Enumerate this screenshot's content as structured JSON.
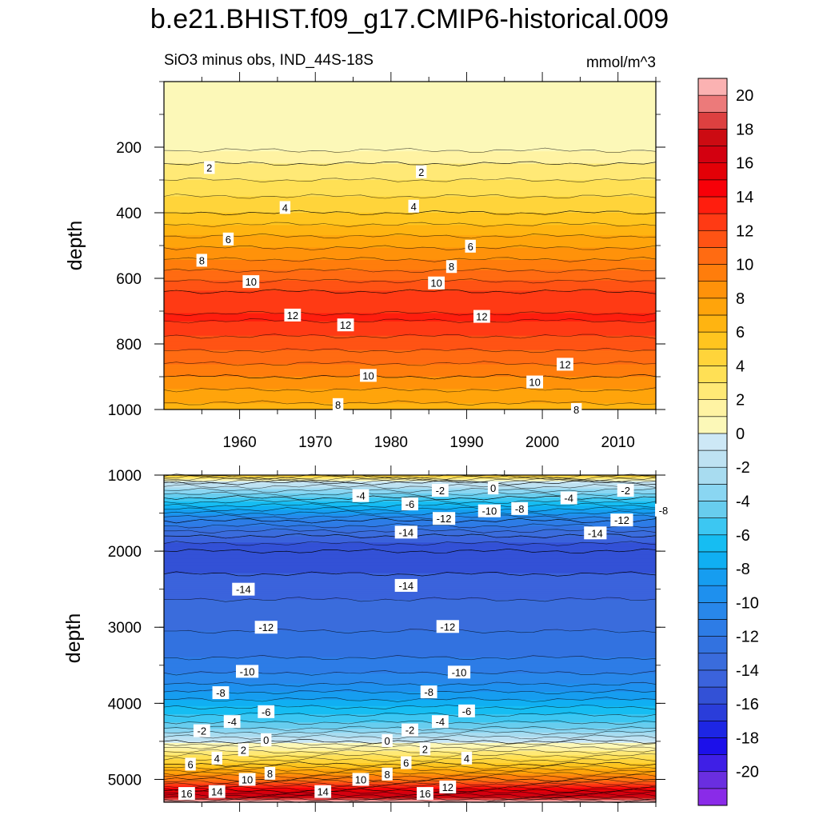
{
  "chart_data": {
    "type": "heatmap",
    "title": "b.e21.BHIST.f09_g17.CMIP6-historical.009",
    "subtitle_left": "SiO3 minus obs, IND_44S-18S",
    "subtitle_right": "mmol/m^3",
    "colorbar": {
      "levels": [
        -22,
        -21,
        -20,
        -19,
        -18,
        -17,
        -16,
        -15,
        -14,
        -13,
        -12,
        -11,
        -10,
        -9,
        -8,
        -7,
        -6,
        -5,
        -4,
        -3,
        -2,
        -1,
        0,
        1,
        2,
        3,
        4,
        5,
        6,
        7,
        8,
        9,
        10,
        11,
        12,
        13,
        14,
        15,
        16,
        17,
        18,
        19,
        20,
        21,
        22
      ],
      "colors": [
        "#8a2be8",
        "#6a2ee0",
        "#3f1fe6",
        "#1c10ea",
        "#1d26e4",
        "#2a3dda",
        "#3351d6",
        "#3b63dc",
        "#3a6cdc",
        "#3272e0",
        "#2d7ce6",
        "#2887ea",
        "#1e90ee",
        "#169df0",
        "#10aff2",
        "#16bdf2",
        "#3cc7f2",
        "#68cdee",
        "#8ad6f2",
        "#a8dcf0",
        "#bee2f2",
        "#cde8f6",
        "#fcf8b8",
        "#fff3a3",
        "#ffe976",
        "#ffe055",
        "#ffd43a",
        "#ffc51f",
        "#ffb411",
        "#ffa40b",
        "#ff920a",
        "#ff7d0c",
        "#ff6b12",
        "#ff5314",
        "#ff3a14",
        "#ff1e0e",
        "#f70008",
        "#e30007",
        "#d30010",
        "#cc0b12",
        "#dd4040",
        "#ec7a7a",
        "#fbb2b2",
        "#ffffff"
      ],
      "ticks": [
        "20",
        "18",
        "16",
        "14",
        "12",
        "10",
        "8",
        "6",
        "4",
        "2",
        "0",
        "-2",
        "-4",
        "-6",
        "-8",
        "-10",
        "-12",
        "-14",
        "-16",
        "-18",
        "-20"
      ]
    },
    "panels": [
      {
        "name": "upper",
        "xlim": [
          1950,
          2015
        ],
        "ylim": [
          0,
          1000
        ],
        "y_reversed": true,
        "ylabel": "depth",
        "xticks": [
          "1960",
          "1970",
          "1980",
          "1990",
          "2000",
          "2010"
        ],
        "yticks": [
          "200",
          "400",
          "600",
          "800",
          "1000"
        ],
        "depth_profile": [
          {
            "depth": 0,
            "value": 0.5
          },
          {
            "depth": 190,
            "value": 0.5
          },
          {
            "depth": 250,
            "value": 2
          },
          {
            "depth": 400,
            "value": 5
          },
          {
            "depth": 560,
            "value": 9.5
          },
          {
            "depth": 640,
            "value": 12
          },
          {
            "depth": 720,
            "value": 13.2
          },
          {
            "depth": 800,
            "value": 11.5
          },
          {
            "depth": 900,
            "value": 9
          },
          {
            "depth": 1000,
            "value": 6.5
          }
        ],
        "contour_labels": [
          {
            "text": "2",
            "year": 1956,
            "depth": 262
          },
          {
            "text": "2",
            "year": 1984,
            "depth": 275
          },
          {
            "text": "4",
            "year": 1966,
            "depth": 384
          },
          {
            "text": "4",
            "year": 1983,
            "depth": 380
          },
          {
            "text": "6",
            "year": 1958.5,
            "depth": 480
          },
          {
            "text": "6",
            "year": 1990.5,
            "depth": 502
          },
          {
            "text": "8",
            "year": 1955,
            "depth": 545
          },
          {
            "text": "8",
            "year": 1988,
            "depth": 564
          },
          {
            "text": "10",
            "year": 1961.5,
            "depth": 610
          },
          {
            "text": "10",
            "year": 1986,
            "depth": 614
          },
          {
            "text": "12",
            "year": 1967,
            "depth": 712
          },
          {
            "text": "12",
            "year": 1974,
            "depth": 742
          },
          {
            "text": "12",
            "year": 1992,
            "depth": 716
          },
          {
            "text": "12",
            "year": 2003,
            "depth": 862
          },
          {
            "text": "10",
            "year": 1977,
            "depth": 896
          },
          {
            "text": "10",
            "year": 1999,
            "depth": 916
          },
          {
            "text": "8",
            "year": 1973,
            "depth": 985
          },
          {
            "text": "8",
            "year": 2004.5,
            "depth": 1000
          }
        ]
      },
      {
        "name": "lower",
        "xlim": [
          1950,
          2015
        ],
        "ylim": [
          1000,
          5300
        ],
        "y_reversed": true,
        "ylabel": "depth",
        "xticks": [],
        "yticks": [
          "1000",
          "2000",
          "3000",
          "4000",
          "5000"
        ],
        "depth_profile": [
          {
            "depth": 1000,
            "value": 5
          },
          {
            "depth": 1100,
            "value": -1
          },
          {
            "depth": 1300,
            "value": -5
          },
          {
            "depth": 1600,
            "value": -11
          },
          {
            "depth": 1800,
            "value": -14
          },
          {
            "depth": 2000,
            "value": -16
          },
          {
            "depth": 2300,
            "value": -15
          },
          {
            "depth": 2800,
            "value": -13.5
          },
          {
            "depth": 3300,
            "value": -12.5
          },
          {
            "depth": 3700,
            "value": -10.5
          },
          {
            "depth": 4000,
            "value": -7.5
          },
          {
            "depth": 4300,
            "value": -4.5
          },
          {
            "depth": 4500,
            "value": -1
          },
          {
            "depth": 4550,
            "value": 0.5
          },
          {
            "depth": 4800,
            "value": 5
          },
          {
            "depth": 5000,
            "value": 10
          },
          {
            "depth": 5150,
            "value": 15
          },
          {
            "depth": 5250,
            "value": 18.5
          },
          {
            "depth": 5300,
            "value": 21
          }
        ],
        "contour_labels": [
          {
            "text": "-4",
            "year": 1976,
            "depth": 1270
          },
          {
            "text": "-6",
            "year": 1982.5,
            "depth": 1380
          },
          {
            "text": "-2",
            "year": 1986.5,
            "depth": 1200
          },
          {
            "text": "0",
            "year": 1993.5,
            "depth": 1170
          },
          {
            "text": "-10",
            "year": 1993,
            "depth": 1470
          },
          {
            "text": "-8",
            "year": 1997,
            "depth": 1440
          },
          {
            "text": "-4",
            "year": 2003.5,
            "depth": 1300
          },
          {
            "text": "-2",
            "year": 2011,
            "depth": 1200
          },
          {
            "text": "-8",
            "year": 2016,
            "depth": 1460
          },
          {
            "text": "-12",
            "year": 1987,
            "depth": 1570
          },
          {
            "text": "-12",
            "year": 2010.5,
            "depth": 1590
          },
          {
            "text": "-14",
            "year": 1982,
            "depth": 1750
          },
          {
            "text": "-14",
            "year": 2007,
            "depth": 1760
          },
          {
            "text": "-14",
            "year": 1960.5,
            "depth": 2500
          },
          {
            "text": "-14",
            "year": 1982,
            "depth": 2450
          },
          {
            "text": "-12",
            "year": 1963.5,
            "depth": 3000
          },
          {
            "text": "-12",
            "year": 1987.5,
            "depth": 2990
          },
          {
            "text": "-10",
            "year": 1961,
            "depth": 3580
          },
          {
            "text": "-10",
            "year": 1989,
            "depth": 3590
          },
          {
            "text": "-8",
            "year": 1957.5,
            "depth": 3860
          },
          {
            "text": "-8",
            "year": 1985,
            "depth": 3850
          },
          {
            "text": "-6",
            "year": 1963.5,
            "depth": 4110
          },
          {
            "text": "-6",
            "year": 1990,
            "depth": 4100
          },
          {
            "text": "-4",
            "year": 1959,
            "depth": 4240
          },
          {
            "text": "-4",
            "year": 1986.5,
            "depth": 4240
          },
          {
            "text": "-2",
            "year": 1955,
            "depth": 4360
          },
          {
            "text": "-2",
            "year": 1982.5,
            "depth": 4350
          },
          {
            "text": "0",
            "year": 1963.5,
            "depth": 4480
          },
          {
            "text": "0",
            "year": 1979.5,
            "depth": 4490
          },
          {
            "text": "2",
            "year": 1960.5,
            "depth": 4610
          },
          {
            "text": "2",
            "year": 1984.5,
            "depth": 4600
          },
          {
            "text": "4",
            "year": 1957,
            "depth": 4720
          },
          {
            "text": "4",
            "year": 1990,
            "depth": 4720
          },
          {
            "text": "6",
            "year": 1953.5,
            "depth": 4800
          },
          {
            "text": "6",
            "year": 1982,
            "depth": 4780
          },
          {
            "text": "8",
            "year": 1964,
            "depth": 4920
          },
          {
            "text": "8",
            "year": 1979.5,
            "depth": 4930
          },
          {
            "text": "10",
            "year": 1961,
            "depth": 5000
          },
          {
            "text": "10",
            "year": 1976,
            "depth": 5000
          },
          {
            "text": "12",
            "year": 1987.5,
            "depth": 5100
          },
          {
            "text": "16",
            "year": 1953,
            "depth": 5185
          },
          {
            "text": "14",
            "year": 1957,
            "depth": 5160
          },
          {
            "text": "14",
            "year": 1971,
            "depth": 5160
          },
          {
            "text": "16",
            "year": 1984.5,
            "depth": 5185
          }
        ]
      }
    ]
  }
}
